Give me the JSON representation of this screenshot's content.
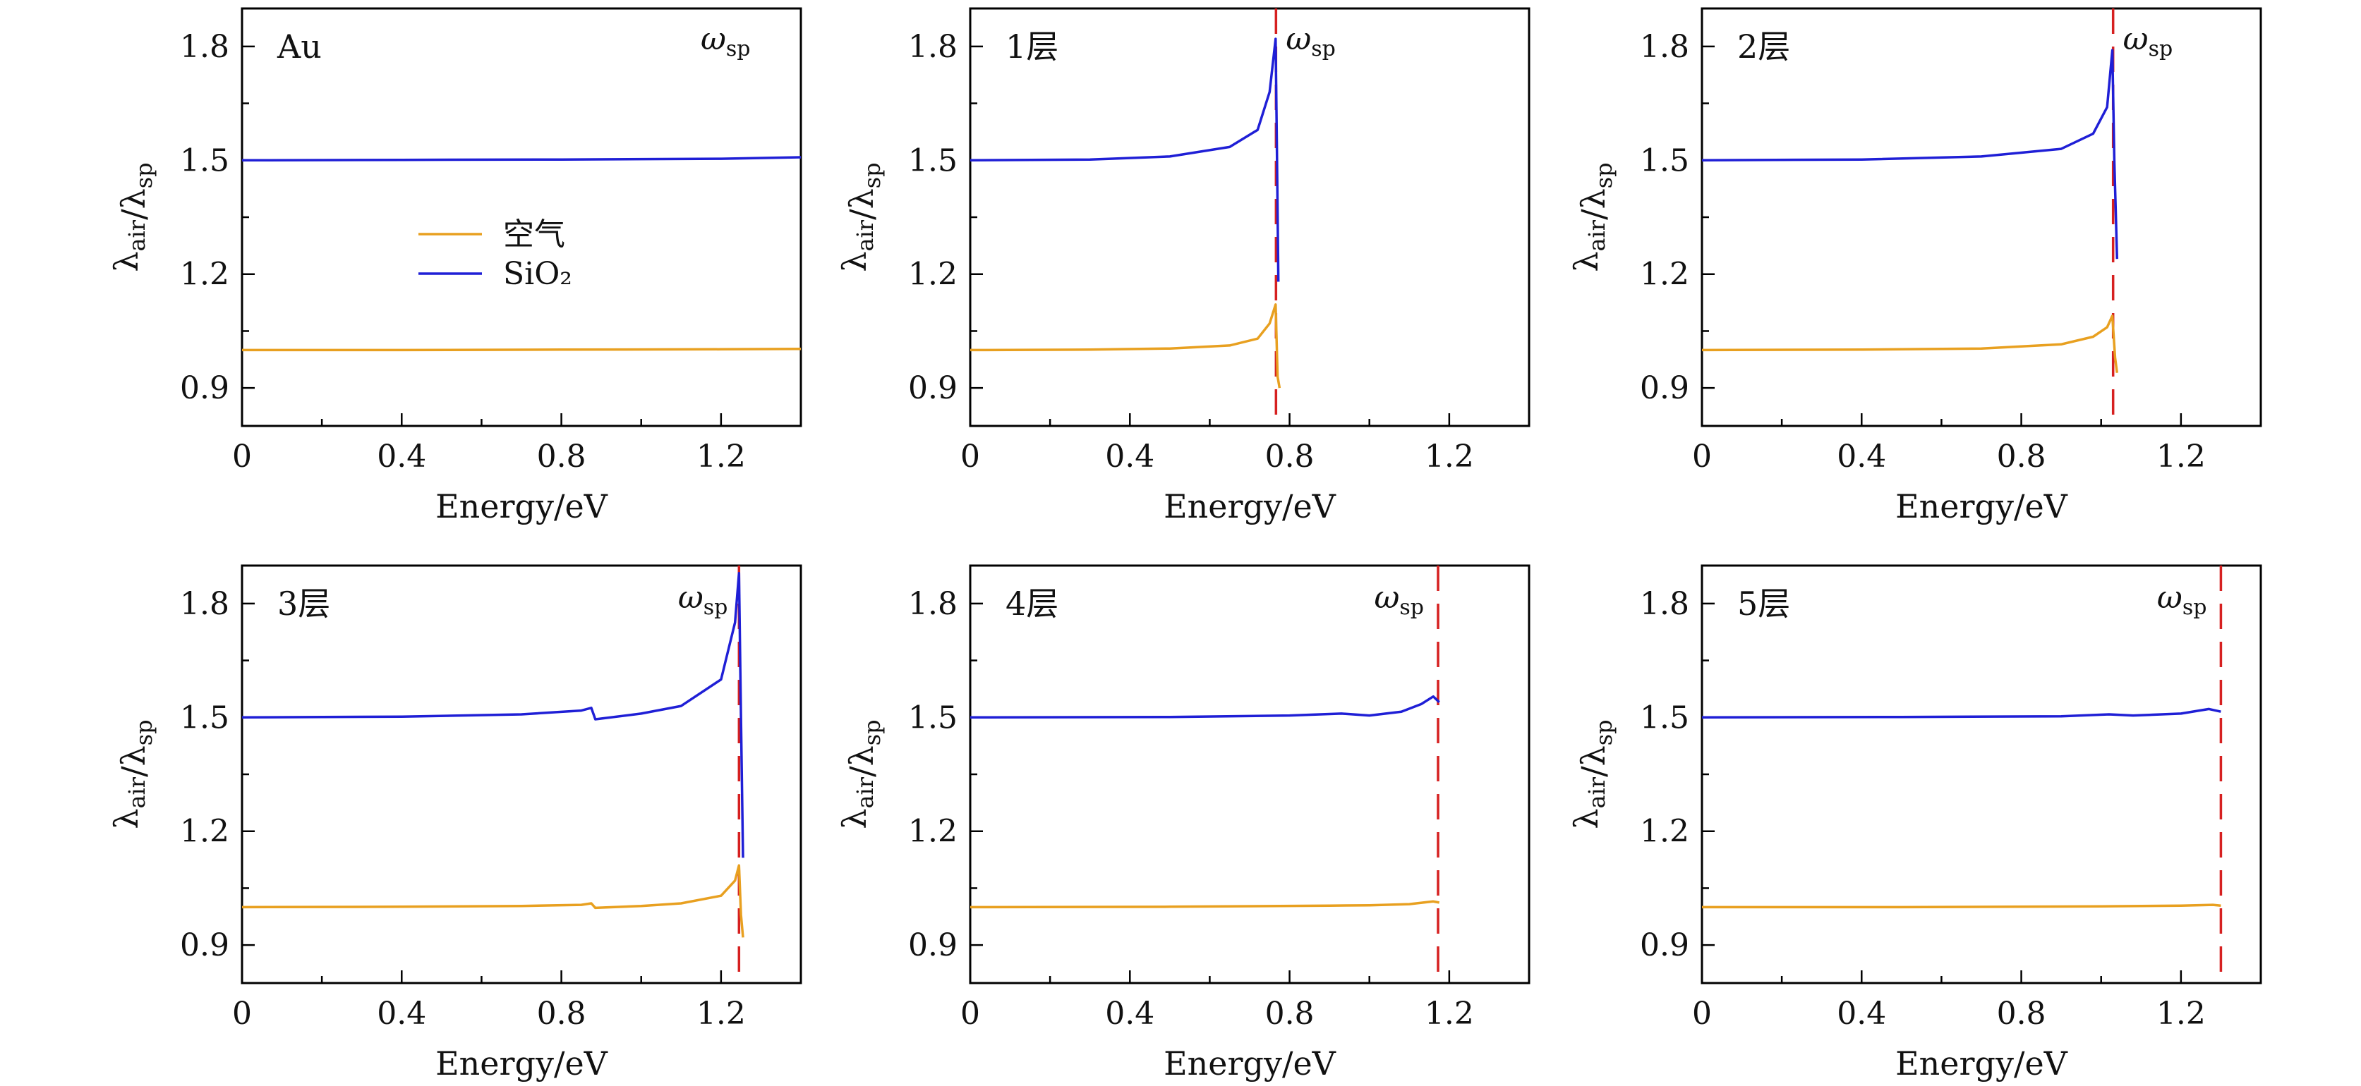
{
  "chart_data": [
    {
      "type": "line",
      "panel_label": "Au",
      "xlabel": "Energy/eV",
      "ylabel": "λair/λsp",
      "xlim": [
        0,
        1.4
      ],
      "ylim": [
        0.8,
        1.9
      ],
      "xticks": [
        0,
        0.4,
        0.8,
        1.2
      ],
      "yticks": [
        0.9,
        1.2,
        1.5,
        1.8
      ],
      "annotation": "ωsp",
      "legend": {
        "position": "center-left",
        "entries": [
          "空气",
          "SiO₂"
        ]
      },
      "vline": null,
      "series": [
        {
          "name": "空气",
          "color": "#e8a020",
          "points": [
            [
              0,
              1.0
            ],
            [
              0.4,
              1.0
            ],
            [
              0.8,
              1.001
            ],
            [
              1.2,
              1.002
            ],
            [
              1.4,
              1.003
            ]
          ]
        },
        {
          "name": "SiO₂",
          "color": "#1f1fd6",
          "points": [
            [
              0,
              1.5
            ],
            [
              0.4,
              1.501
            ],
            [
              0.8,
              1.502
            ],
            [
              1.2,
              1.504
            ],
            [
              1.4,
              1.508
            ]
          ]
        }
      ]
    },
    {
      "type": "line",
      "panel_label": "1层",
      "xlabel": "Energy/eV",
      "ylabel": "λair/λsp",
      "xlim": [
        0,
        1.4
      ],
      "ylim": [
        0.8,
        1.9
      ],
      "xticks": [
        0,
        0.4,
        0.8,
        1.2
      ],
      "yticks": [
        0.9,
        1.2,
        1.5,
        1.8
      ],
      "annotation": "ωsp",
      "vline": 0.766,
      "series": [
        {
          "name": "空气",
          "color": "#e8a020",
          "points": [
            [
              0,
              1.0
            ],
            [
              0.3,
              1.001
            ],
            [
              0.5,
              1.004
            ],
            [
              0.65,
              1.012
            ],
            [
              0.72,
              1.03
            ],
            [
              0.75,
              1.07
            ],
            [
              0.765,
              1.12
            ],
            [
              0.77,
              0.93
            ],
            [
              0.775,
              0.9
            ]
          ]
        },
        {
          "name": "SiO₂",
          "color": "#1f1fd6",
          "points": [
            [
              0,
              1.5
            ],
            [
              0.3,
              1.502
            ],
            [
              0.5,
              1.51
            ],
            [
              0.65,
              1.535
            ],
            [
              0.72,
              1.58
            ],
            [
              0.75,
              1.68
            ],
            [
              0.765,
              1.82
            ],
            [
              0.768,
              1.55
            ],
            [
              0.772,
              1.18
            ]
          ]
        }
      ]
    },
    {
      "type": "line",
      "panel_label": "2层",
      "xlabel": "Energy/eV",
      "ylabel": "λair/λsp",
      "xlim": [
        0,
        1.4
      ],
      "ylim": [
        0.8,
        1.9
      ],
      "xticks": [
        0,
        0.4,
        0.8,
        1.2
      ],
      "yticks": [
        0.9,
        1.2,
        1.5,
        1.8
      ],
      "annotation": "ωsp",
      "vline": 1.03,
      "series": [
        {
          "name": "空气",
          "color": "#e8a020",
          "points": [
            [
              0,
              1.0
            ],
            [
              0.4,
              1.001
            ],
            [
              0.7,
              1.004
            ],
            [
              0.9,
              1.015
            ],
            [
              0.98,
              1.035
            ],
            [
              1.015,
              1.06
            ],
            [
              1.028,
              1.09
            ],
            [
              1.035,
              0.98
            ],
            [
              1.04,
              0.94
            ]
          ]
        },
        {
          "name": "SiO₂",
          "color": "#1f1fd6",
          "points": [
            [
              0,
              1.5
            ],
            [
              0.4,
              1.502
            ],
            [
              0.7,
              1.51
            ],
            [
              0.9,
              1.53
            ],
            [
              0.98,
              1.57
            ],
            [
              1.015,
              1.64
            ],
            [
              1.028,
              1.79
            ],
            [
              1.033,
              1.5
            ],
            [
              1.04,
              1.24
            ]
          ]
        }
      ]
    },
    {
      "type": "line",
      "panel_label": "3层",
      "xlabel": "Energy/eV",
      "ylabel": "λair/λsp",
      "xlim": [
        0,
        1.4
      ],
      "ylim": [
        0.8,
        1.9
      ],
      "xticks": [
        0,
        0.4,
        0.8,
        1.2
      ],
      "yticks": [
        0.9,
        1.2,
        1.5,
        1.8
      ],
      "annotation": "ωsp",
      "vline": 1.245,
      "series": [
        {
          "name": "空气",
          "color": "#e8a020",
          "points": [
            [
              0,
              1.0
            ],
            [
              0.4,
              1.001
            ],
            [
              0.7,
              1.003
            ],
            [
              0.85,
              1.006
            ],
            [
              0.875,
              1.01
            ],
            [
              0.885,
              0.998
            ],
            [
              1.0,
              1.003
            ],
            [
              1.1,
              1.01
            ],
            [
              1.2,
              1.03
            ],
            [
              1.235,
              1.07
            ],
            [
              1.245,
              1.11
            ],
            [
              1.25,
              0.98
            ],
            [
              1.255,
              0.92
            ]
          ]
        },
        {
          "name": "SiO₂",
          "color": "#1f1fd6",
          "points": [
            [
              0,
              1.5
            ],
            [
              0.4,
              1.502
            ],
            [
              0.7,
              1.508
            ],
            [
              0.85,
              1.518
            ],
            [
              0.875,
              1.525
            ],
            [
              0.885,
              1.495
            ],
            [
              1.0,
              1.51
            ],
            [
              1.1,
              1.53
            ],
            [
              1.2,
              1.6
            ],
            [
              1.235,
              1.75
            ],
            [
              1.245,
              1.88
            ],
            [
              1.25,
              1.5
            ],
            [
              1.255,
              1.13
            ]
          ]
        }
      ]
    },
    {
      "type": "line",
      "panel_label": "4层",
      "xlabel": "Energy/eV",
      "ylabel": "λair/λsp",
      "xlim": [
        0,
        1.4
      ],
      "ylim": [
        0.8,
        1.9
      ],
      "xticks": [
        0,
        0.4,
        0.8,
        1.2
      ],
      "yticks": [
        0.9,
        1.2,
        1.5,
        1.8
      ],
      "annotation": "ωsp",
      "vline": 1.172,
      "series": [
        {
          "name": "空气",
          "color": "#e8a020",
          "points": [
            [
              0,
              1.0
            ],
            [
              0.5,
              1.001
            ],
            [
              0.9,
              1.004
            ],
            [
              1.0,
              1.005
            ],
            [
              1.1,
              1.008
            ],
            [
              1.16,
              1.015
            ],
            [
              1.175,
              1.012
            ]
          ]
        },
        {
          "name": "SiO₂",
          "color": "#1f1fd6",
          "points": [
            [
              0,
              1.5
            ],
            [
              0.5,
              1.501
            ],
            [
              0.8,
              1.505
            ],
            [
              0.93,
              1.51
            ],
            [
              1.0,
              1.505
            ],
            [
              1.08,
              1.515
            ],
            [
              1.13,
              1.535
            ],
            [
              1.16,
              1.555
            ],
            [
              1.175,
              1.54
            ]
          ]
        }
      ]
    },
    {
      "type": "line",
      "panel_label": "5层",
      "xlabel": "Energy/eV",
      "ylabel": "λair/λsp",
      "xlim": [
        0,
        1.4
      ],
      "ylim": [
        0.8,
        1.9
      ],
      "xticks": [
        0,
        0.4,
        0.8,
        1.2
      ],
      "yticks": [
        0.9,
        1.2,
        1.5,
        1.8
      ],
      "annotation": "ωsp",
      "vline": 1.3,
      "series": [
        {
          "name": "空气",
          "color": "#e8a020",
          "points": [
            [
              0,
              1.0
            ],
            [
              0.5,
              1.0
            ],
            [
              1.0,
              1.002
            ],
            [
              1.2,
              1.004
            ],
            [
              1.28,
              1.006
            ],
            [
              1.3,
              1.004
            ]
          ]
        },
        {
          "name": "SiO₂",
          "color": "#1f1fd6",
          "points": [
            [
              0,
              1.5
            ],
            [
              0.5,
              1.501
            ],
            [
              0.9,
              1.503
            ],
            [
              1.02,
              1.508
            ],
            [
              1.08,
              1.505
            ],
            [
              1.2,
              1.51
            ],
            [
              1.27,
              1.522
            ],
            [
              1.3,
              1.515
            ]
          ]
        }
      ]
    }
  ]
}
